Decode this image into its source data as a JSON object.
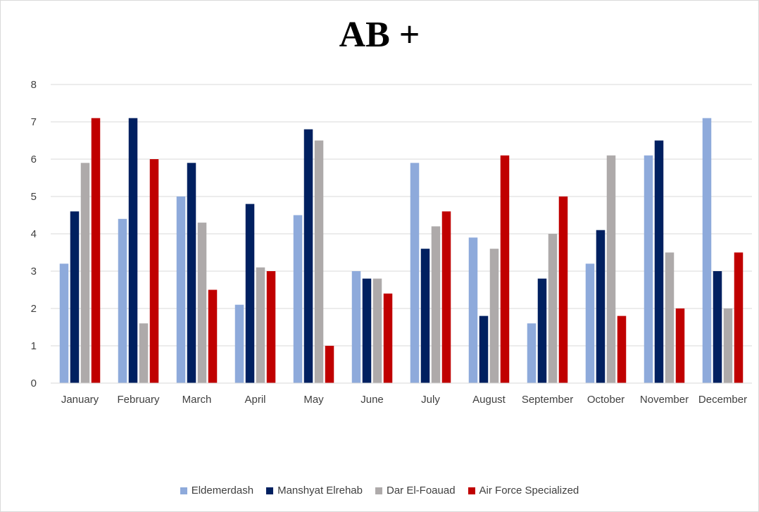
{
  "chart_data": {
    "type": "bar",
    "title": "AB +",
    "xlabel": "",
    "ylabel": "",
    "ylim": [
      0,
      8
    ],
    "yticks": [
      "0",
      "1",
      "2",
      "3",
      "4",
      "5",
      "6",
      "7",
      "8"
    ],
    "grid": true,
    "legend_position": "bottom",
    "categories": [
      "January",
      "February",
      "March",
      "April",
      "May",
      "June",
      "July",
      "August",
      "September",
      "October",
      "November",
      "December"
    ],
    "series": [
      {
        "name": "Eldemerdash",
        "color": "#8eaadb",
        "values": [
          3.2,
          4.4,
          5.0,
          2.1,
          4.5,
          3.0,
          5.9,
          3.9,
          1.6,
          3.2,
          6.1,
          7.1
        ]
      },
      {
        "name": "Manshyat Elrehab",
        "color": "#002060",
        "values": [
          4.6,
          7.1,
          5.9,
          4.8,
          6.8,
          2.8,
          3.6,
          1.8,
          2.8,
          4.1,
          6.5,
          3.0
        ]
      },
      {
        "name": "Dar El-Foauad",
        "color": "#aeaaaa",
        "values": [
          5.9,
          1.6,
          4.3,
          3.1,
          6.5,
          2.8,
          4.2,
          3.6,
          4.0,
          6.1,
          3.5,
          2.0
        ]
      },
      {
        "name": "Air Force Specialized",
        "color": "#c00000",
        "values": [
          7.1,
          6.0,
          2.5,
          3.0,
          1.0,
          2.4,
          4.6,
          6.1,
          5.0,
          1.8,
          2.0,
          3.5
        ]
      }
    ]
  }
}
